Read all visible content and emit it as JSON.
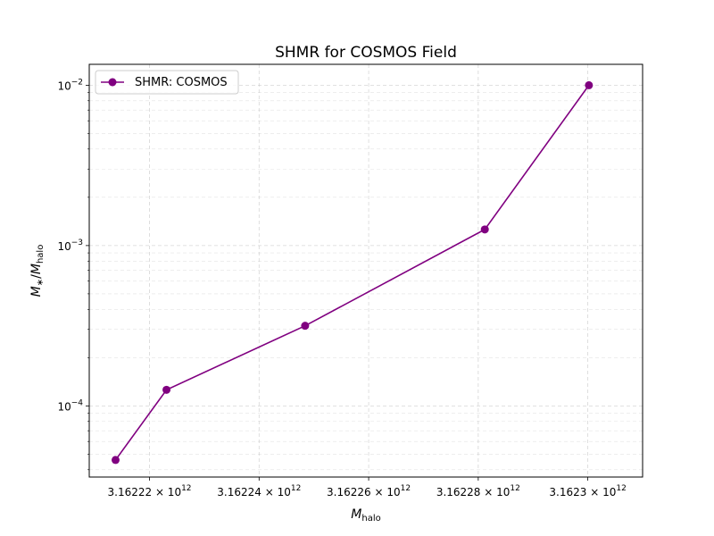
{
  "chart_data": {
    "type": "line",
    "title": "SHMR for COSMOS Field",
    "xlabel": "M_halo",
    "ylabel": "M_*/M_halo",
    "x_scale": "log",
    "y_scale": "log",
    "xlim": [
      3162209000000.0,
      3162310000000.0
    ],
    "ylim": [
      3.6e-05,
      0.0135
    ],
    "grid": true,
    "legend_position": "upper-left",
    "x_ticks": [
      {
        "value": 3162220000000.0,
        "mantissa": "3.16222",
        "base": "10",
        "exp": "12"
      },
      {
        "value": 3162240000000.0,
        "mantissa": "3.16224",
        "base": "10",
        "exp": "12"
      },
      {
        "value": 3162260000000.0,
        "mantissa": "3.16226",
        "base": "10",
        "exp": "12"
      },
      {
        "value": 3162280000000.0,
        "mantissa": "3.16228",
        "base": "10",
        "exp": "12"
      },
      {
        "value": 3162300000000.0,
        "mantissa": "3.1623",
        "base": "10",
        "exp": "12"
      }
    ],
    "y_ticks": [
      {
        "value": 0.0001,
        "base": "10",
        "exp": "−4"
      },
      {
        "value": 0.001,
        "base": "10",
        "exp": "−3"
      },
      {
        "value": 0.01,
        "base": "10",
        "exp": "−2"
      }
    ],
    "series": [
      {
        "name": "SHMR: COSMOS",
        "color": "#800080",
        "x": [
          3162213800000.0,
          3162223100000.0,
          3162248400000.0,
          3162281200000.0,
          3162300200000.0
        ],
        "y": [
          4.6e-05,
          0.000126,
          0.000316,
          0.00126,
          0.01
        ]
      }
    ]
  }
}
